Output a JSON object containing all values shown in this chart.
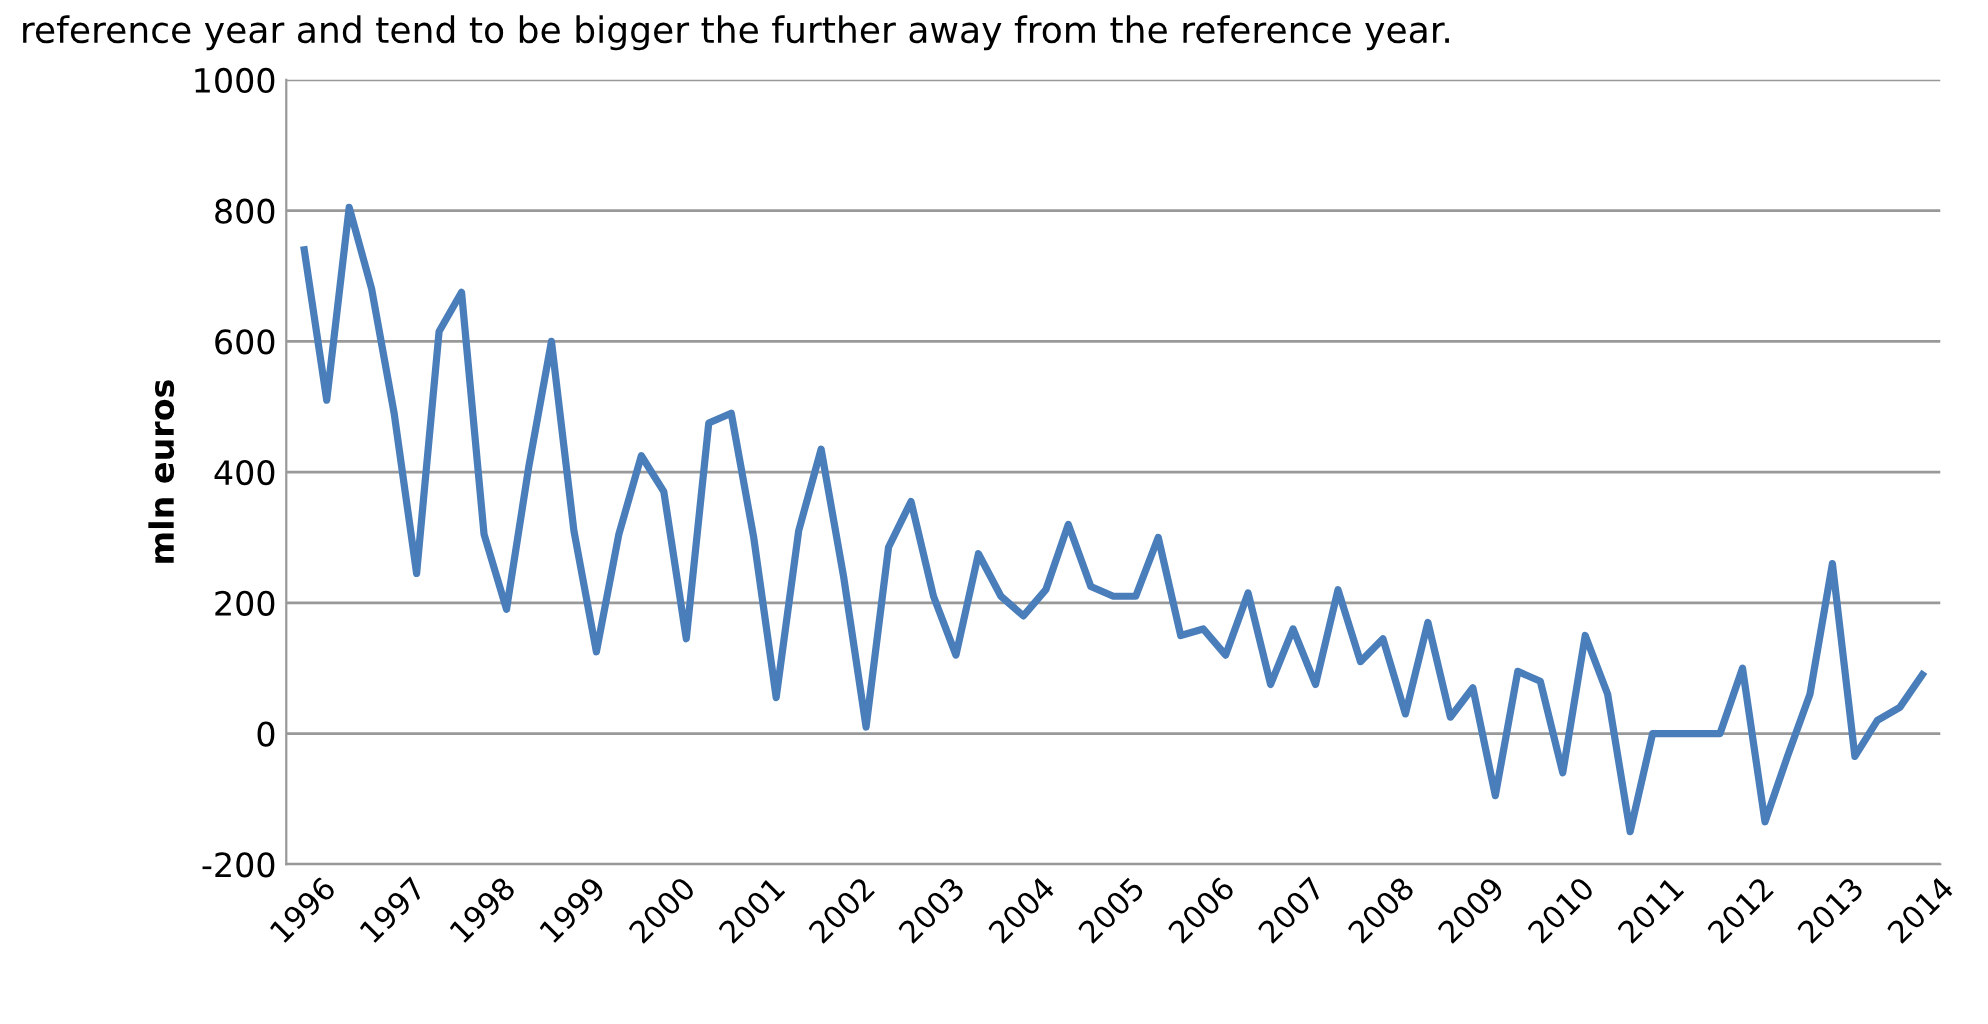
{
  "chart_data": {
    "type": "line",
    "ylabel": "mln euros",
    "annotations": [
      "reference year and tend to be bigger the further away from the reference year."
    ],
    "x": [
      1996,
      1996.25,
      1996.5,
      1996.75,
      1997,
      1997.25,
      1997.5,
      1997.75,
      1998,
      1998.25,
      1998.5,
      1998.75,
      1999,
      1999.25,
      1999.5,
      1999.75,
      2000,
      2000.25,
      2000.5,
      2000.75,
      2001,
      2001.25,
      2001.5,
      2001.75,
      2002,
      2002.25,
      2002.5,
      2002.75,
      2003,
      2003.25,
      2003.5,
      2003.75,
      2004,
      2004.25,
      2004.5,
      2004.75,
      2005,
      2005.25,
      2005.5,
      2005.75,
      2006,
      2006.25,
      2006.5,
      2006.75,
      2007,
      2007.25,
      2007.5,
      2007.75,
      2008,
      2008.25,
      2008.5,
      2008.75,
      2009,
      2009.25,
      2009.5,
      2009.75,
      2010,
      2010.25,
      2010.5,
      2010.75,
      2011,
      2011.25,
      2011.5,
      2011.75,
      2012,
      2012.25,
      2012.5,
      2012.75,
      2013,
      2013.25,
      2013.5,
      2013.75,
      2014
    ],
    "series": [
      {
        "color": "#4a7ebb",
        "values": [
          740,
          510,
          805,
          680,
          490,
          245,
          615,
          675,
          305,
          190,
          410,
          600,
          310,
          125,
          305,
          425,
          370,
          145,
          475,
          490,
          300,
          55,
          310,
          435,
          240,
          10,
          285,
          355,
          210,
          120,
          275,
          210,
          180,
          220,
          320,
          225,
          210,
          210,
          300,
          150,
          160,
          120,
          215,
          75,
          160,
          75,
          220,
          110,
          145,
          30,
          170,
          25,
          70,
          -95,
          95,
          80,
          -60,
          150,
          60,
          -150,
          0,
          0,
          0,
          0,
          100,
          -135,
          -35,
          60,
          260,
          -35,
          20,
          40,
          90
        ]
      }
    ],
    "xlim": [
      1995.8,
      2014.2
    ],
    "xticks": [
      1996,
      1997,
      1998,
      1999,
      2000,
      2001,
      2002,
      2003,
      2004,
      2005,
      2006,
      2007,
      2008,
      2009,
      2010,
      2011,
      2012,
      2013,
      2014
    ],
    "ylim": [
      -200,
      1000
    ],
    "yticks": [
      -200,
      0,
      200,
      400,
      600,
      800,
      1000
    ],
    "grid": "y",
    "legend": false,
    "marker": "none",
    "line_style": "solid"
  }
}
